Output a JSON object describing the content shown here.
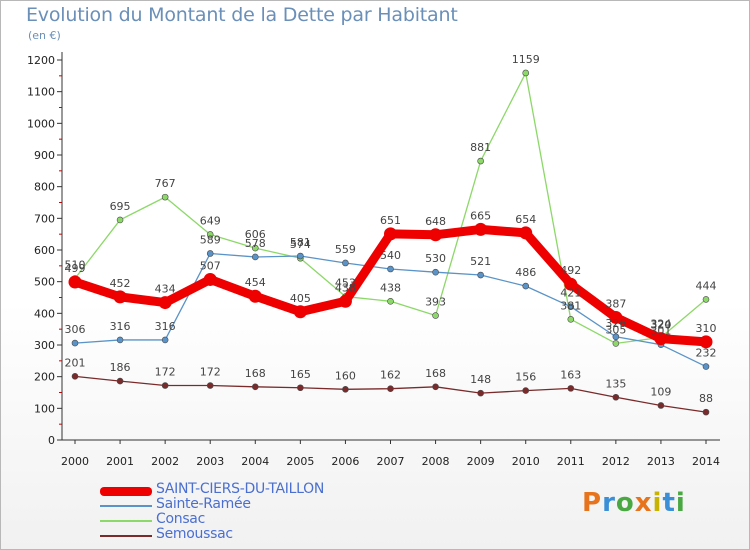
{
  "header": {
    "title": "Evolution du Montant de la Dette par Habitant",
    "unit": "(en €)"
  },
  "brand": {
    "text": "Proxiti",
    "colors": [
      "#e8731d",
      "#3a8fd6",
      "#4aa842",
      "#e8731d",
      "#c8b400",
      "#3a8fd6",
      "#4aa842"
    ]
  },
  "chart_data": {
    "type": "line",
    "x": [
      "2000",
      "2001",
      "2002",
      "2003",
      "2004",
      "2005",
      "2006",
      "2007",
      "2008",
      "2009",
      "2010",
      "2011",
      "2012",
      "2013",
      "2014"
    ],
    "ylim": [
      0,
      1200
    ],
    "yticks": [
      "0",
      "100",
      "200",
      "300",
      "400",
      "500",
      "600",
      "700",
      "800",
      "900",
      "1000",
      "1100",
      "1200"
    ],
    "grid": false,
    "legend_position": "bottom-left",
    "series": [
      {
        "name": "SAINT-CIERS-DU-TAILLON",
        "color": "#ee0000",
        "width": "thick",
        "values": [
          499,
          452,
          434,
          507,
          454,
          405,
          438,
          651,
          648,
          665,
          654,
          492,
          387,
          320,
          310
        ],
        "labels": [
          "499",
          "452",
          "434",
          "507",
          "454",
          "405",
          "438",
          "651",
          "648",
          "665",
          "654",
          "492",
          "387",
          "320",
          "310"
        ]
      },
      {
        "name": "Sainte-Ramée",
        "color": "#5a93c8",
        "width": "thin",
        "values": [
          306,
          316,
          316,
          589,
          578,
          581,
          559,
          540,
          530,
          521,
          486,
          421,
          326,
          301,
          232
        ],
        "labels": [
          "306",
          "316",
          "316",
          "589",
          "578",
          "581",
          "559",
          "540",
          "530",
          "521",
          "486",
          "421",
          "326",
          "301",
          "232"
        ]
      },
      {
        "name": "Consac",
        "color": "#8cd868",
        "width": "thin",
        "values": [
          510,
          695,
          767,
          649,
          606,
          574,
          453,
          438,
          393,
          881,
          1159,
          381,
          305,
          324,
          444
        ],
        "labels": [
          "510",
          "695",
          "767",
          "649",
          "606",
          "574",
          "453",
          "438",
          "393",
          "881",
          "1159",
          "381",
          "305",
          "324",
          "444"
        ]
      },
      {
        "name": "Semoussac",
        "color": "#7a2a2a",
        "width": "thin",
        "values": [
          201,
          186,
          172,
          172,
          168,
          165,
          160,
          162,
          168,
          148,
          156,
          163,
          135,
          109,
          88
        ],
        "labels": [
          "201",
          "186",
          "172",
          "172",
          "168",
          "165",
          "160",
          "162",
          "168",
          "148",
          "156",
          "163",
          "135",
          "109",
          "88"
        ]
      }
    ]
  }
}
